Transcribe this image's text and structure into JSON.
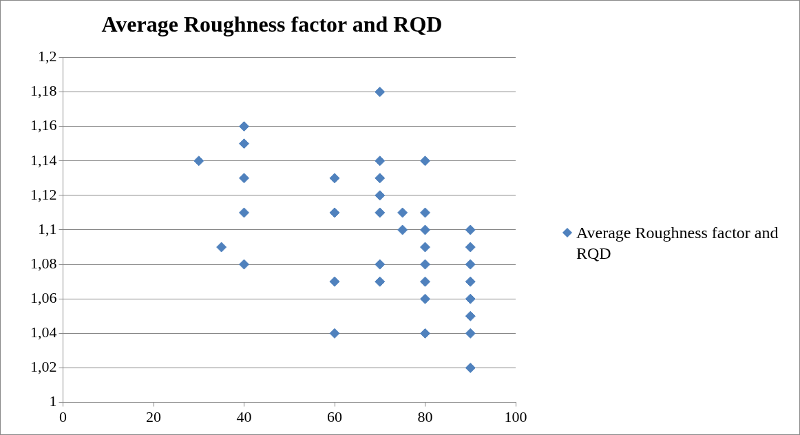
{
  "chart_data": {
    "type": "scatter",
    "title": "Average Roughness factor and RQD",
    "series": [
      {
        "name": "Average Roughness factor and RQD",
        "color": "#4f81bd",
        "x": [
          30,
          35,
          40,
          40,
          40,
          40,
          40,
          60,
          60,
          60,
          60,
          70,
          70,
          70,
          70,
          70,
          70,
          70,
          75,
          75,
          80,
          80,
          80,
          80,
          80,
          80,
          80,
          80,
          90,
          90,
          90,
          90,
          90,
          90,
          90,
          90
        ],
        "values": [
          1.14,
          1.09,
          1.16,
          1.15,
          1.13,
          1.11,
          1.08,
          1.13,
          1.11,
          1.07,
          1.04,
          1.18,
          1.14,
          1.13,
          1.12,
          1.11,
          1.08,
          1.07,
          1.11,
          1.1,
          1.14,
          1.11,
          1.1,
          1.09,
          1.08,
          1.07,
          1.06,
          1.04,
          1.1,
          1.09,
          1.08,
          1.07,
          1.06,
          1.05,
          1.04,
          1.02
        ]
      }
    ],
    "xlim": [
      0,
      100
    ],
    "xticks": [
      0,
      20,
      40,
      60,
      80,
      100
    ],
    "ylim": [
      1,
      1.2
    ],
    "yticks": [
      {
        "value": 1,
        "label": "1"
      },
      {
        "value": 1.02,
        "label": "1,02"
      },
      {
        "value": 1.04,
        "label": "1,04"
      },
      {
        "value": 1.06,
        "label": "1,06"
      },
      {
        "value": 1.08,
        "label": "1,08"
      },
      {
        "value": 1.1,
        "label": "1,1"
      },
      {
        "value": 1.12,
        "label": "1,12"
      },
      {
        "value": 1.14,
        "label": "1,14"
      },
      {
        "value": 1.16,
        "label": "1,16"
      },
      {
        "value": 1.18,
        "label": "1,18"
      },
      {
        "value": 1.2,
        "label": "1,2"
      }
    ],
    "grid": "y",
    "legend": "right",
    "marker": "diamond"
  }
}
